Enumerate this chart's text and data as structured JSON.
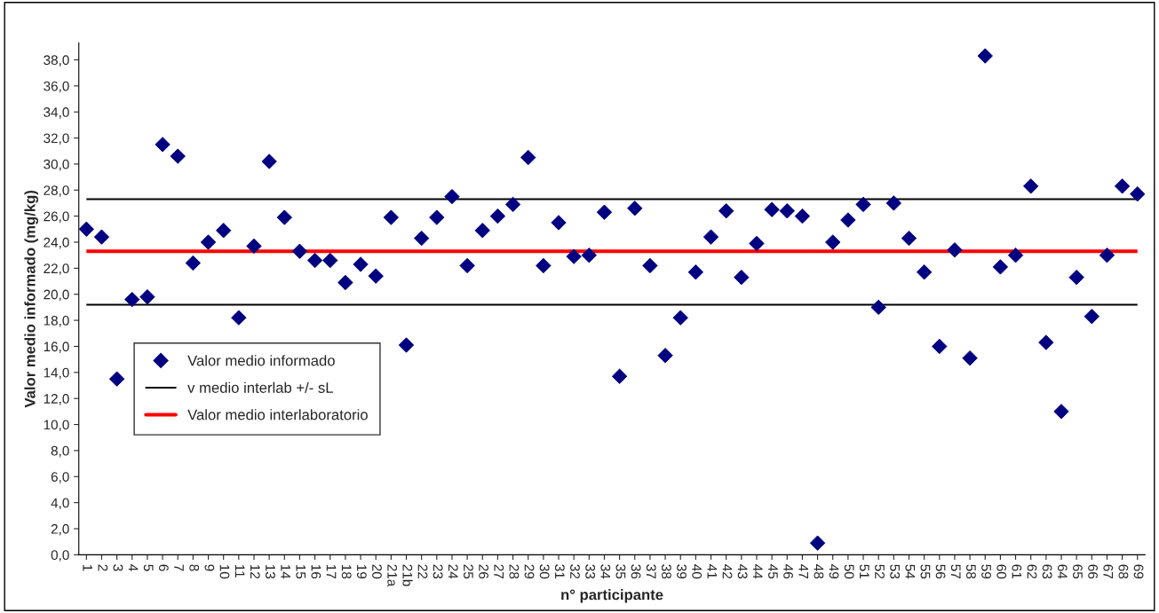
{
  "chart_data": {
    "type": "scatter",
    "xlabel": "n° participante",
    "ylabel": "Valor medio informado (mg/kg)",
    "categories": [
      "1",
      "2",
      "3",
      "4",
      "5",
      "6",
      "7",
      "8",
      "9",
      "10",
      "11",
      "12",
      "13",
      "14",
      "15",
      "16",
      "17",
      "18",
      "19",
      "20",
      "21a",
      "21b",
      "22",
      "23",
      "24",
      "25",
      "26",
      "27",
      "28",
      "29",
      "30",
      "31",
      "32",
      "33",
      "34",
      "35",
      "36",
      "37",
      "38",
      "39",
      "40",
      "41",
      "42",
      "43",
      "44",
      "45",
      "46",
      "47",
      "48",
      "49",
      "50",
      "51",
      "52",
      "53",
      "54",
      "55",
      "56",
      "57",
      "58",
      "59",
      "60",
      "61",
      "62",
      "63",
      "64",
      "65",
      "66",
      "67",
      "68",
      "69"
    ],
    "series": [
      {
        "name": "Valor medio informado",
        "color": "#000080",
        "marker": "diamond",
        "values": [
          25.0,
          24.4,
          13.5,
          19.6,
          19.8,
          31.5,
          30.6,
          22.4,
          24.0,
          24.9,
          18.2,
          23.7,
          30.2,
          25.9,
          23.3,
          22.6,
          22.6,
          20.9,
          22.3,
          21.4,
          25.9,
          16.1,
          24.3,
          25.9,
          27.5,
          22.2,
          24.9,
          26.0,
          26.9,
          30.5,
          22.2,
          25.5,
          22.9,
          23.0,
          26.3,
          13.7,
          26.6,
          22.2,
          15.3,
          18.2,
          21.7,
          24.4,
          26.4,
          21.3,
          23.9,
          26.5,
          26.4,
          26.0,
          0.9,
          24.0,
          25.7,
          26.9,
          19.0,
          27.0,
          24.3,
          21.7,
          16.0,
          23.4,
          15.1,
          38.3,
          22.1,
          23.0,
          28.3,
          16.3,
          11.0,
          21.3,
          18.3,
          23.0,
          28.3,
          27.7
        ]
      }
    ],
    "ref_lines": [
      {
        "axis": "y",
        "value": 27.3,
        "label": "v medio interlab +/- sL",
        "color": "#000000"
      },
      {
        "axis": "y",
        "value": 19.2,
        "label": null,
        "color": "#000000"
      },
      {
        "axis": "y",
        "value": 23.3,
        "label": "Valor medio interlaboratorio",
        "color": "#ff0000"
      }
    ],
    "ylim": [
      0,
      39.3
    ],
    "yticks": [
      {
        "value": 0,
        "label": "0,0"
      },
      {
        "value": 2,
        "label": "2,0"
      },
      {
        "value": 4,
        "label": "4,0"
      },
      {
        "value": 6,
        "label": "6,0"
      },
      {
        "value": 8,
        "label": "8,0"
      },
      {
        "value": 10,
        "label": "10,0"
      },
      {
        "value": 12,
        "label": "12,0"
      },
      {
        "value": 14,
        "label": "14,0"
      },
      {
        "value": 16,
        "label": "16,0"
      },
      {
        "value": 18,
        "label": "18,0"
      },
      {
        "value": 20,
        "label": "20,0"
      },
      {
        "value": 22,
        "label": "22,0"
      },
      {
        "value": 24,
        "label": "24,0"
      },
      {
        "value": 26,
        "label": "26,0"
      },
      {
        "value": 28,
        "label": "28,0"
      },
      {
        "value": 30,
        "label": "30,0"
      },
      {
        "value": 32,
        "label": "32,0"
      },
      {
        "value": 34,
        "label": "34,0"
      },
      {
        "value": 36,
        "label": "36,0"
      },
      {
        "value": 38,
        "label": "38,0"
      }
    ],
    "grid": false,
    "legend": "bottom left"
  }
}
